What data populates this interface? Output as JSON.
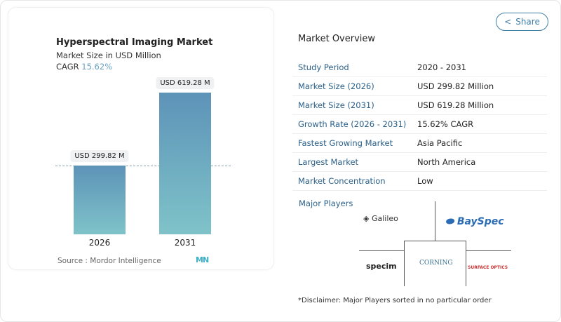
{
  "chart_data": {
    "type": "bar",
    "title": "Hyperspectral Imaging Market",
    "subtitle": "Market Size in USD Million",
    "cagr_label": "CAGR",
    "cagr_value": "15.62%",
    "categories": [
      "2026",
      "2031"
    ],
    "values": [
      299.82,
      619.28
    ],
    "data_labels": [
      "USD 299.82 M",
      "USD 619.28 M"
    ],
    "source": "Source :  Mordor Intelligence",
    "bar_color_top": "#5d93b8",
    "bar_color_bottom": "#7fc3c9"
  },
  "share_label": "Share",
  "overview": {
    "title": "Market Overview",
    "rows": [
      {
        "k": "Study Period",
        "v": "2020 - 2031"
      },
      {
        "k": "Market Size (2026)",
        "v": "USD 299.82 Million"
      },
      {
        "k": "Market Size (2031)",
        "v": "USD 619.28 Million"
      },
      {
        "k": "Growth Rate (2026 - 2031)",
        "v": "15.62% CAGR"
      },
      {
        "k": "Fastest Growing Market",
        "v": "Asia Pacific"
      },
      {
        "k": "Largest Market",
        "v": "North America"
      },
      {
        "k": "Market Concentration",
        "v": "Low"
      }
    ]
  },
  "players": {
    "title": "Major Players",
    "logos": [
      "Galileo group inc.",
      "BaySpec",
      "Specim",
      "CORNING",
      "Surface Optics Corporation"
    ]
  },
  "disclaimer": "*Disclaimer: Major Players sorted in no particular order"
}
